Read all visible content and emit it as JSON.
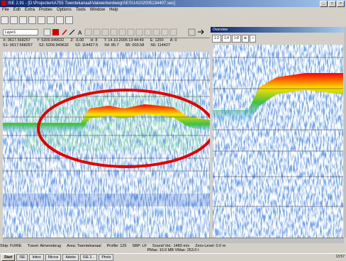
{
  "window": {
    "title": "ISE 2.91 - [D:\\Projecten\\A755 Twentekanaal\\Vakwerkerdweg\\SES\\14102005134407.ses]"
  },
  "menu": [
    "File",
    "Edit",
    "Extra",
    "Probes",
    "Options",
    "Tools",
    "Window",
    "Help"
  ],
  "layer": {
    "selected": "Layer1"
  },
  "coords": {
    "row1": [
      "X: 0617.568257",
      "Y: 5209.949632",
      "Z: -6.00",
      "H: 8",
      "T: 14.10.2005 13:44:49",
      "E: 1250",
      "A: 0"
    ],
    "row2": [
      "S1: 0617.568257",
      "S2: 5209.949632",
      "S3: 114427.5",
      "S4: 85.7",
      "S5: 003.58",
      "S6: 114427"
    ]
  },
  "overview": {
    "title": "Overview",
    "zoom": [
      "1:2",
      "1:4",
      "1:8"
    ]
  },
  "status": {
    "ship": "Ship: FURIE",
    "travel": "Travel: Almenobrug",
    "area": "Area: Twentekanaal",
    "profile": "Profile: 125",
    "sbp": "SBP: LF",
    "sound": "Sound Vel.: 1480 m/s",
    "zero": "Zero-Level: 0.0 m",
    "pmax": "PMax: 10.0 MB VMax: 253.0 t"
  },
  "taskbar": {
    "start": "Start",
    "tasks": [
      "ISE",
      "Inbox",
      "Micros",
      "Adobe",
      "ISE 2...",
      "Photo"
    ],
    "clock": "13:57"
  },
  "colors": {
    "accent": "#0a246a",
    "highlight_circle": "#e00000"
  }
}
